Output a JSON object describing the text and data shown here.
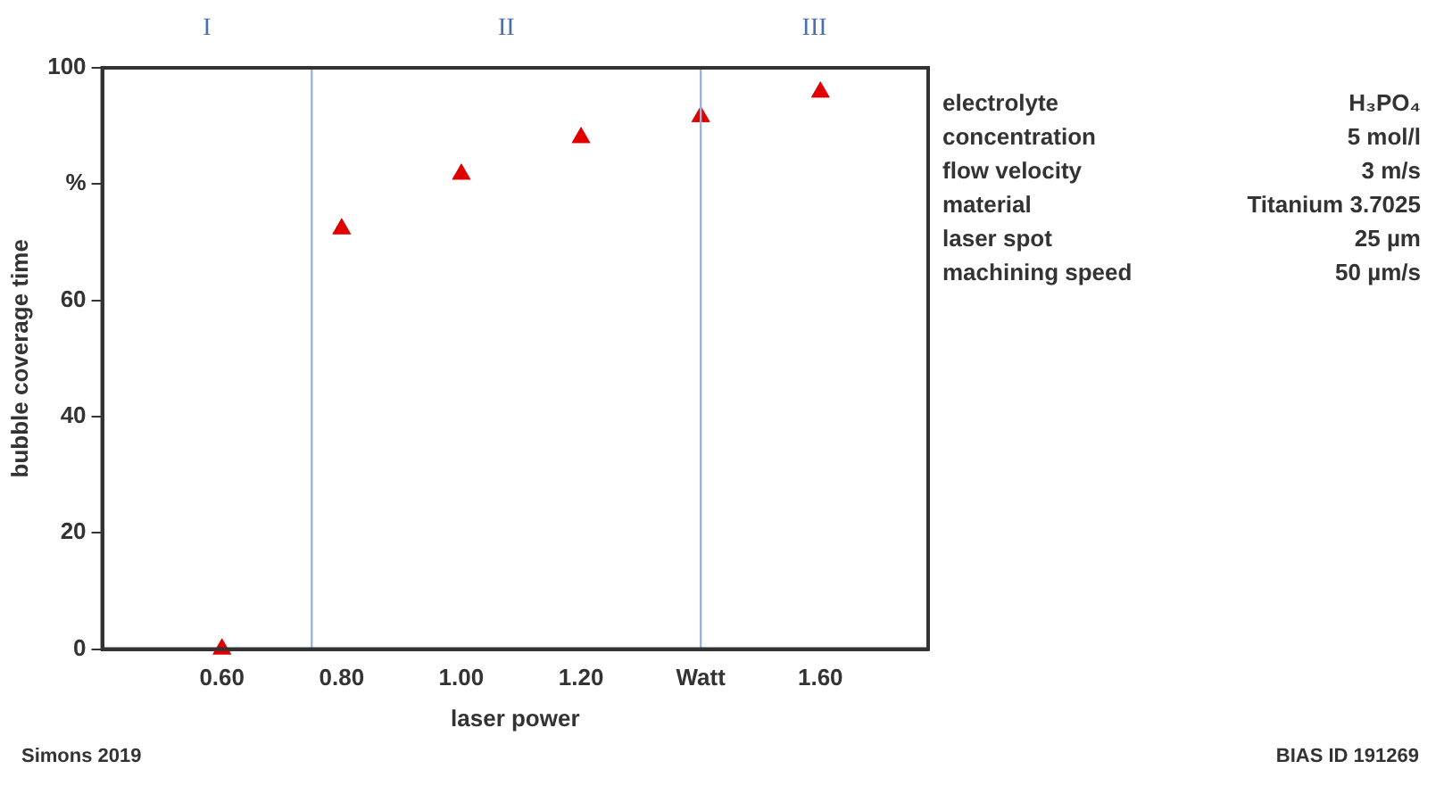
{
  "chart_data": {
    "type": "scatter",
    "xlabel": "laser power",
    "ylabel": "bubble coverage time",
    "x": [
      0.6,
      0.8,
      1.0,
      1.2,
      1.4,
      1.6
    ],
    "series": [
      {
        "color": "#e00000",
        "values": [
          0,
          72.3,
          81.7,
          88,
          91.6,
          95.8
        ]
      }
    ],
    "marker": "triangle",
    "grid": false,
    "legend": false,
    "xlim": [
      0.4,
      1.78
    ],
    "xticks": [
      {
        "value": 0.6,
        "label": "0.60"
      },
      {
        "value": 0.8,
        "label": "0.80"
      },
      {
        "value": 1.0,
        "label": "1.00"
      },
      {
        "value": 1.2,
        "label": "1.20"
      },
      {
        "value": 1.4,
        "label": "Watt"
      },
      {
        "value": 1.6,
        "label": "1.60"
      }
    ],
    "ylim": [
      0,
      100
    ],
    "yticks": [
      0,
      20,
      40,
      60,
      {
        "value": 80,
        "label": "%"
      },
      100
    ],
    "ref_lines": [
      {
        "axis": "x",
        "value": 0.75,
        "color": "#9fb3d3"
      },
      {
        "axis": "x",
        "value": 1.4,
        "color": "#9fb3d3"
      }
    ],
    "annotations": [
      "I",
      "II",
      "III",
      "electrolyte",
      "H₃PO₄",
      "concentration",
      "5 mol/l",
      "flow velocity",
      "3 m/s",
      "material",
      "Titanium 3.7025",
      "laser spot",
      "25 µm",
      "machining speed",
      "50 µm/s",
      "Simons 2019",
      "BIAS ID 191269"
    ]
  }
}
